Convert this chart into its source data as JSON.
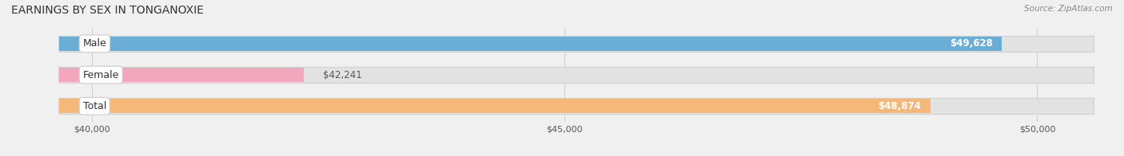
{
  "title": "EARNINGS BY SEX IN TONGANOXIE",
  "source": "Source: ZipAtlas.com",
  "categories": [
    "Male",
    "Female",
    "Total"
  ],
  "values": [
    49628,
    42241,
    48874
  ],
  "bar_colors": [
    "#6aaed6",
    "#f2a7bc",
    "#f5b878"
  ],
  "value_labels": [
    "$49,628",
    "$42,241",
    "$48,874"
  ],
  "xmin": 40000,
  "xmax": 50000,
  "xticks": [
    40000,
    45000,
    50000
  ],
  "xtick_labels": [
    "$40,000",
    "$45,000",
    "$50,000"
  ],
  "label_fontsize": 9,
  "title_fontsize": 10,
  "value_fontsize": 8.5,
  "bg_color": "#f0f0f0",
  "track_color": "#e2e2e2",
  "track_edge_color": "#d0d0d0"
}
